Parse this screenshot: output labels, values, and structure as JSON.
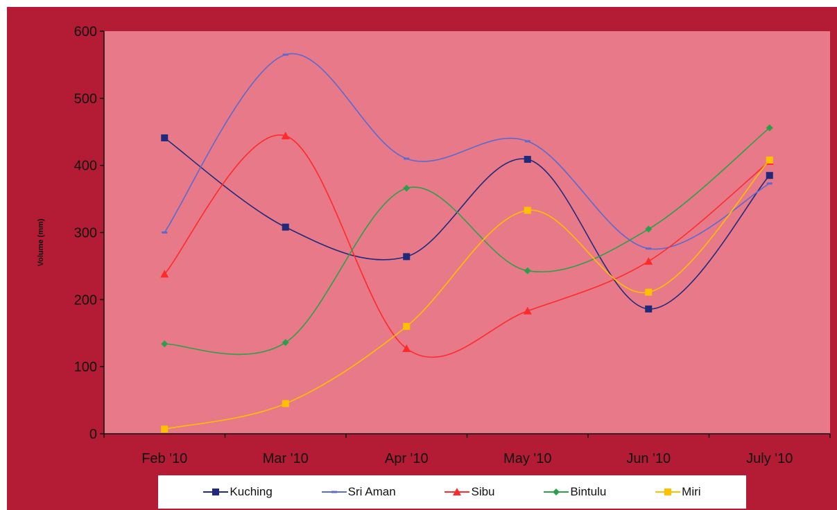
{
  "chart_data": {
    "type": "line",
    "categories": [
      "Feb '10",
      "Mar '10",
      "Apr '10",
      "May '10",
      "Jun '10",
      "July '10"
    ],
    "ylabel": "Volume (mm)",
    "xlabel": "",
    "ylim": [
      0,
      600
    ],
    "yticks": [
      "0",
      "100",
      "200",
      "300",
      "400",
      "500",
      "600"
    ],
    "grid": false,
    "legend_position": "bottom",
    "plot_background": "#e87988",
    "frame_background": "#b31c34",
    "series": [
      {
        "name": "Kuching",
        "color": "#1f2a7a",
        "marker": "square",
        "values": [
          441,
          308,
          264,
          409,
          186,
          385
        ]
      },
      {
        "name": "Sri Aman",
        "color": "#5a6ad0",
        "marker": "dash",
        "values": [
          300,
          565,
          410,
          436,
          276,
          373
        ]
      },
      {
        "name": "Sibu",
        "color": "#ff2a2a",
        "marker": "triangle",
        "values": [
          238,
          444,
          127,
          183,
          257,
          406
        ]
      },
      {
        "name": "Bintulu",
        "color": "#2aa04a",
        "marker": "diamond",
        "values": [
          134,
          136,
          366,
          243,
          305,
          456
        ]
      },
      {
        "name": "Miri",
        "color": "#ffc000",
        "marker": "square",
        "values": [
          7,
          45,
          160,
          333,
          211,
          408
        ]
      }
    ]
  }
}
